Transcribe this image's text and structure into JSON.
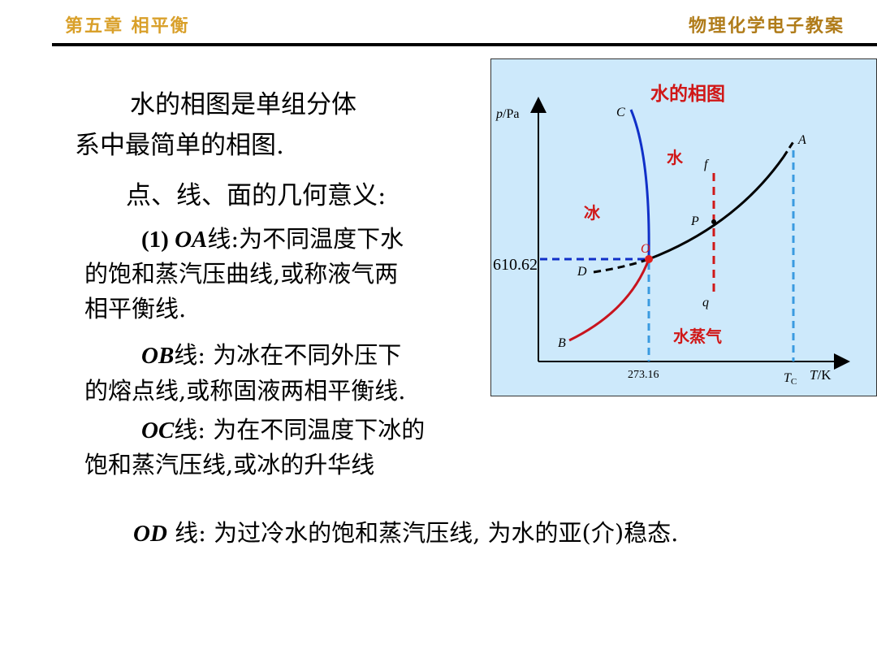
{
  "header": {
    "chapter": "第五章 相平衡",
    "course": "物理化学电子教案"
  },
  "body": {
    "intro_line1": "水的相图是单组分体",
    "intro_line2": "系中最简单的相图.",
    "geometry_title": "点、线、面的几何意义:",
    "oa_prefix": "(1) ",
    "oa_label": "OA",
    "oa_line1": "线:为不同温度下水",
    "oa_line2": "的饱和蒸汽压曲线,或称液气两",
    "oa_line3": "相平衡线.",
    "ob_label": "OB",
    "ob_line1": "线: 为冰在不同外压下",
    "ob_line2": "的熔点线,或称固液两相平衡线.",
    "oc_label": "OC",
    "oc_line1": "线: 为在不同温度下冰的",
    "oc_line2": "饱和蒸汽压线,或冰的升华线",
    "od_label": "OD",
    "od_line1": " 线: 为过冷水的饱和蒸汽压线, 为水的亚(介)稳态."
  },
  "diagram": {
    "title": "水的相图",
    "y_axis_label_p": "p",
    "y_axis_label_unit": "/Pa",
    "x_axis_label_t": "T",
    "x_axis_label_unit": "/K",
    "y_tick": "610.62",
    "x_tick": "273.16",
    "tc_label_t": "T",
    "tc_label_sub": "C",
    "region_water": "水",
    "region_ice": "冰",
    "region_vapor": "水蒸气",
    "points": {
      "A": "A",
      "B": "B",
      "C": "C",
      "D": "D",
      "O": "O",
      "P": "P",
      "f": "f",
      "q": "q"
    },
    "colors": {
      "background": "#cde9fb",
      "oc_line": "#1030c8",
      "ob_line": "#c8141e",
      "oa_line": "#000000",
      "guide_blue": "#3a9be0",
      "guide_red": "#d01818",
      "region_label": "#d01818"
    }
  }
}
